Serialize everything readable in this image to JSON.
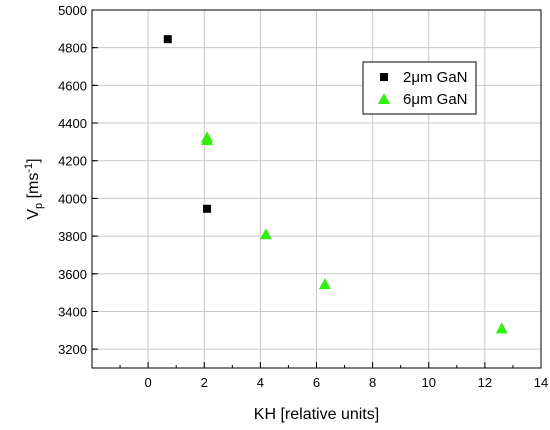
{
  "chart_data": {
    "type": "scatter",
    "title": "",
    "xlabel": "KH [relative units]",
    "ylabel_main": "V",
    "ylabel_sub": "p",
    "ylabel_unit": " [ms",
    "ylabel_exp": "-1",
    "ylabel_close": "]",
    "xlim": [
      -2,
      14
    ],
    "ylim": [
      3100,
      5000
    ],
    "xticks": [
      0,
      2,
      4,
      6,
      8,
      10,
      12,
      14
    ],
    "yticks": [
      3200,
      3400,
      3600,
      3800,
      4000,
      4200,
      4400,
      4600,
      4800,
      5000
    ],
    "grid": true,
    "legend_position": "top-right",
    "series": [
      {
        "name": "2μm GaN",
        "marker": "square",
        "color": "#000000",
        "points": [
          {
            "x": 0.7,
            "y": 4845
          },
          {
            "x": 2.1,
            "y": 3945
          }
        ]
      },
      {
        "name": "6μm GaN",
        "marker": "triangle",
        "color": "#33ee11",
        "points": [
          {
            "x": 2.1,
            "y": 4310
          },
          {
            "x": 2.1,
            "y": 4325
          },
          {
            "x": 4.2,
            "y": 3810
          },
          {
            "x": 6.3,
            "y": 3545
          },
          {
            "x": 12.6,
            "y": 3310
          }
        ]
      }
    ]
  }
}
